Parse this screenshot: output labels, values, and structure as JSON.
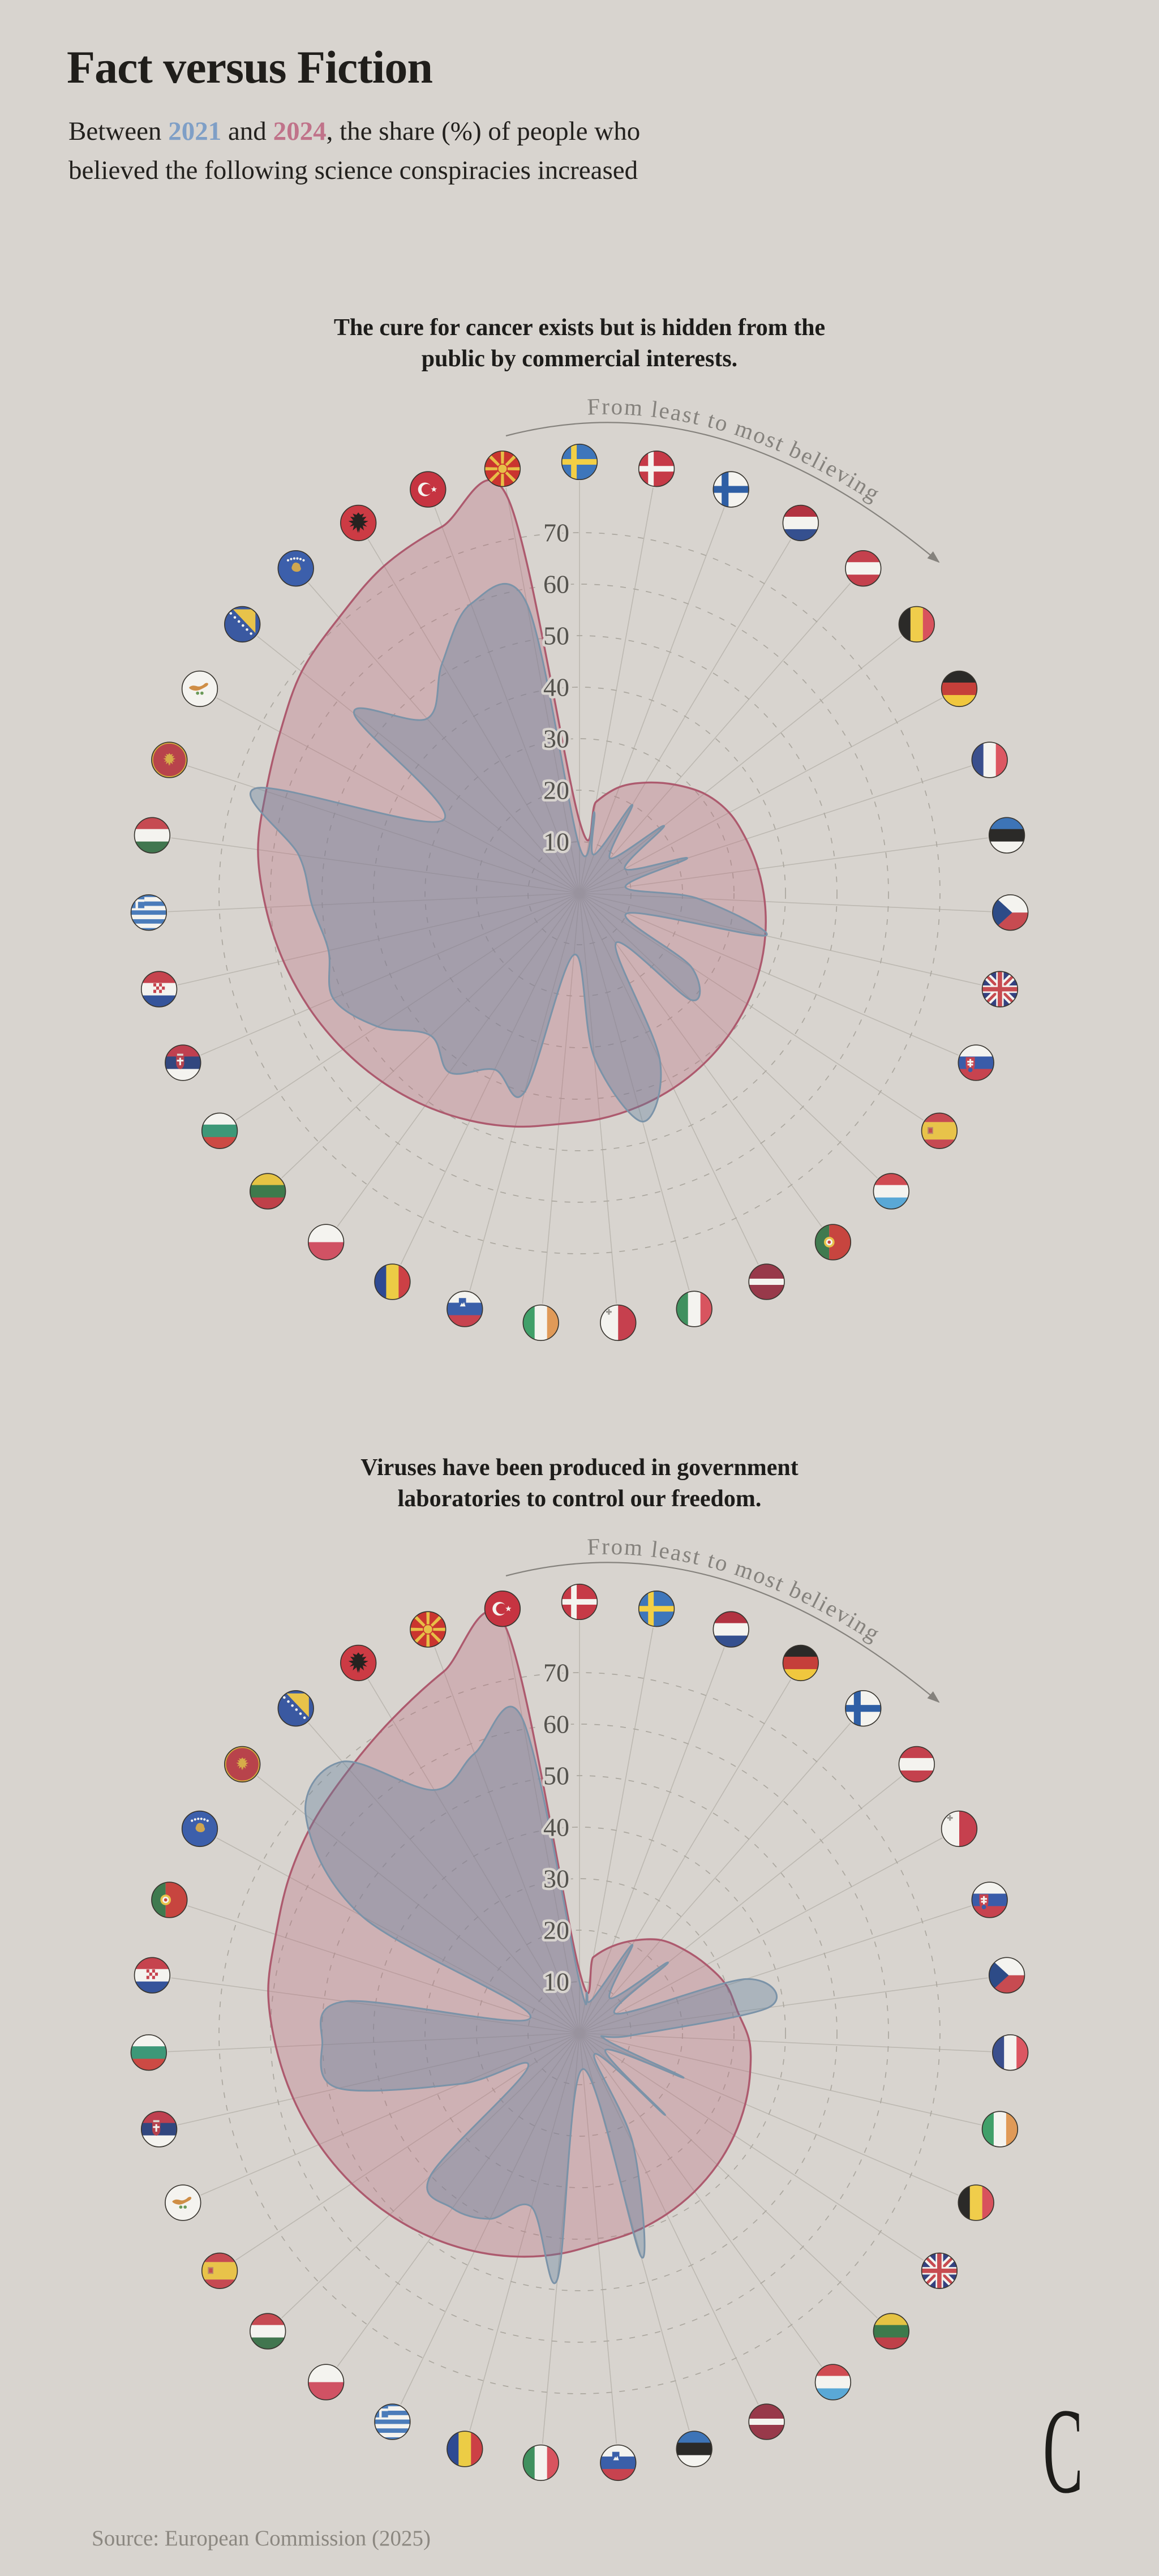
{
  "page": {
    "background": "#d8d4cf",
    "title": "Fact versus Fiction",
    "subtitle": {
      "before": "Between ",
      "year1": "2021",
      "middle": " and ",
      "year2": "2024",
      "after": ", the share (%) of people who believed the following science conspiracies increased"
    },
    "source": "Source: European Commission (2025)",
    "logo_letter": "C"
  },
  "style": {
    "year1_color": "#7f9fc6",
    "year2_color": "#c0738a",
    "pink_fill": "rgba(184,106,125,0.33)",
    "pink_stroke": "#ad5a6e",
    "blue_fill": "rgba(98,128,158,0.38)",
    "blue_stroke": "#7b93a8",
    "grid": "#aba79f",
    "spoke": "#bcb8b1",
    "tick_text": "#55534e",
    "arc_text": "#85827d",
    "flag_border": "#38352f"
  },
  "arc_label": "From least to most believing",
  "axis_ticks": [
    10,
    20,
    30,
    40,
    50,
    60,
    70
  ],
  "chart_data": [
    {
      "type": "radar",
      "title": "The cure for cancer exists but is hidden from the public by commercial interests.",
      "ylim": [
        0,
        70
      ],
      "units": "% who believe",
      "angular_order": "clockwise from top, least to most believing",
      "series": [
        "2021",
        "2024"
      ],
      "countries": [
        {
          "code": "SE",
          "name": "Sweden",
          "y2021": 9,
          "y2024": 14
        },
        {
          "code": "DK",
          "name": "Denmark",
          "y2021": 16,
          "y2024": 18
        },
        {
          "code": "FI",
          "name": "Finland",
          "y2021": 8,
          "y2024": 22
        },
        {
          "code": "NL",
          "name": "Netherlands",
          "y2021": 20,
          "y2024": 25
        },
        {
          "code": "AT",
          "name": "Austria",
          "y2021": 9,
          "y2024": 28
        },
        {
          "code": "BE",
          "name": "Belgium",
          "y2021": 21,
          "y2024": 31
        },
        {
          "code": "DE",
          "name": "Germany",
          "y2021": 10,
          "y2024": 33
        },
        {
          "code": "FR",
          "name": "France",
          "y2021": 22,
          "y2024": 34
        },
        {
          "code": "EE",
          "name": "Estonia",
          "y2021": 9,
          "y2024": 35
        },
        {
          "code": "CZ",
          "name": "Czechia",
          "y2021": 23,
          "y2024": 36
        },
        {
          "code": "GB",
          "name": "United Kingdom",
          "y2021": 37,
          "y2024": 37
        },
        {
          "code": "SK",
          "name": "Slovakia",
          "y2021": 10,
          "y2024": 38
        },
        {
          "code": "ES",
          "name": "Spain",
          "y2021": 26,
          "y2024": 39
        },
        {
          "code": "LU",
          "name": "Luxembourg",
          "y2021": 30,
          "y2024": 40
        },
        {
          "code": "PT",
          "name": "Portugal",
          "y2021": 12,
          "y2024": 41
        },
        {
          "code": "LV",
          "name": "Latvia",
          "y2021": 36,
          "y2024": 42
        },
        {
          "code": "IT",
          "name": "Italy",
          "y2021": 46,
          "y2024": 43
        },
        {
          "code": "MT",
          "name": "Malta",
          "y2021": 32,
          "y2024": 44
        },
        {
          "code": "IE",
          "name": "Ireland",
          "y2021": 12,
          "y2024": 45
        },
        {
          "code": "SI",
          "name": "Slovenia",
          "y2021": 40,
          "y2024": 47
        },
        {
          "code": "RO",
          "name": "Romania",
          "y2021": 38,
          "y2024": 49
        },
        {
          "code": "PL",
          "name": "Poland",
          "y2021": 43,
          "y2024": 51
        },
        {
          "code": "LT",
          "name": "Lithuania",
          "y2021": 40,
          "y2024": 53
        },
        {
          "code": "BG",
          "name": "Bulgaria",
          "y2021": 47,
          "y2024": 55
        },
        {
          "code": "RS",
          "name": "Serbia",
          "y2021": 52,
          "y2024": 57
        },
        {
          "code": "HR",
          "name": "Croatia",
          "y2021": 50,
          "y2024": 59
        },
        {
          "code": "GR",
          "name": "Greece",
          "y2021": 52,
          "y2024": 61
        },
        {
          "code": "HU",
          "name": "Hungary",
          "y2021": 55,
          "y2024": 63
        },
        {
          "code": "ME",
          "name": "Montenegro",
          "y2021": 66,
          "y2024": 64
        },
        {
          "code": "CY",
          "name": "Cyprus",
          "y2021": 30,
          "y2024": 66
        },
        {
          "code": "BA",
          "name": "Bosnia and Herzegovina",
          "y2021": 56,
          "y2024": 69
        },
        {
          "code": "XK",
          "name": "Kosovo",
          "y2021": 45,
          "y2024": 71
        },
        {
          "code": "AL",
          "name": "Albania",
          "y2021": 52,
          "y2024": 74
        },
        {
          "code": "TR",
          "name": "Turkey",
          "y2021": 60,
          "y2024": 76
        },
        {
          "code": "MK",
          "name": "North Macedonia",
          "y2021": 57,
          "y2024": 78
        }
      ]
    },
    {
      "type": "radar",
      "title": "Viruses have been produced in government laboratories to control our freedom.",
      "ylim": [
        0,
        70
      ],
      "units": "% who believe",
      "angular_order": "clockwise from top, least to most believing",
      "series": [
        "2021",
        "2024"
      ],
      "countries": [
        {
          "code": "DK",
          "name": "Denmark",
          "y2021": 10,
          "y2024": 12
        },
        {
          "code": "SE",
          "name": "Sweden",
          "y2021": 8,
          "y2024": 15
        },
        {
          "code": "NL",
          "name": "Netherlands",
          "y2021": 7,
          "y2024": 18
        },
        {
          "code": "DE",
          "name": "Germany",
          "y2021": 20,
          "y2024": 21
        },
        {
          "code": "FI",
          "name": "Finland",
          "y2021": 9,
          "y2024": 24
        },
        {
          "code": "AT",
          "name": "Austria",
          "y2021": 22,
          "y2024": 26
        },
        {
          "code": "MT",
          "name": "Malta",
          "y2021": 8,
          "y2024": 28
        },
        {
          "code": "SK",
          "name": "Slovakia",
          "y2021": 34,
          "y2024": 30
        },
        {
          "code": "CZ",
          "name": "Czechia",
          "y2021": 37,
          "y2024": 31
        },
        {
          "code": "FR",
          "name": "France",
          "y2021": 10,
          "y2024": 33
        },
        {
          "code": "IE",
          "name": "Ireland",
          "y2021": 5,
          "y2024": 34
        },
        {
          "code": "BE",
          "name": "Belgium",
          "y2021": 22,
          "y2024": 35
        },
        {
          "code": "GB",
          "name": "United Kingdom",
          "y2021": 6,
          "y2024": 36
        },
        {
          "code": "LT",
          "name": "Lithuania",
          "y2021": 23,
          "y2024": 37
        },
        {
          "code": "LU",
          "name": "Luxembourg",
          "y2021": 5,
          "y2024": 38
        },
        {
          "code": "LV",
          "name": "Latvia",
          "y2021": 24,
          "y2024": 39
        },
        {
          "code": "EE",
          "name": "Estonia",
          "y2021": 45,
          "y2024": 40
        },
        {
          "code": "SI",
          "name": "Slovenia",
          "y2021": 7,
          "y2024": 41
        },
        {
          "code": "IT",
          "name": "Italy",
          "y2021": 48,
          "y2024": 43
        },
        {
          "code": "RO",
          "name": "Romania",
          "y2021": 35,
          "y2024": 45
        },
        {
          "code": "GR",
          "name": "Greece",
          "y2021": 40,
          "y2024": 47
        },
        {
          "code": "PL",
          "name": "Poland",
          "y2021": 42,
          "y2024": 49
        },
        {
          "code": "HU",
          "name": "Hungary",
          "y2021": 40,
          "y2024": 51
        },
        {
          "code": "ES",
          "name": "Spain",
          "y2021": 12,
          "y2024": 53
        },
        {
          "code": "CY",
          "name": "Cyprus",
          "y2021": 25,
          "y2024": 55
        },
        {
          "code": "RS",
          "name": "Serbia",
          "y2021": 48,
          "y2024": 57
        },
        {
          "code": "BG",
          "name": "Bulgaria",
          "y2021": 50,
          "y2024": 59
        },
        {
          "code": "HR",
          "name": "Croatia",
          "y2021": 46,
          "y2024": 61
        },
        {
          "code": "PT",
          "name": "Portugal",
          "y2021": 10,
          "y2024": 62
        },
        {
          "code": "XK",
          "name": "Kosovo",
          "y2021": 48,
          "y2024": 64
        },
        {
          "code": "ME",
          "name": "Montenegro",
          "y2021": 68,
          "y2024": 66
        },
        {
          "code": "BA",
          "name": "Bosnia and Herzegovina",
          "y2021": 70,
          "y2024": 68
        },
        {
          "code": "AL",
          "name": "Albania",
          "y2021": 55,
          "y2024": 71
        },
        {
          "code": "MK",
          "name": "North Macedonia",
          "y2021": 58,
          "y2024": 75
        },
        {
          "code": "TR",
          "name": "Turkey",
          "y2021": 62,
          "y2024": 80
        }
      ]
    }
  ]
}
